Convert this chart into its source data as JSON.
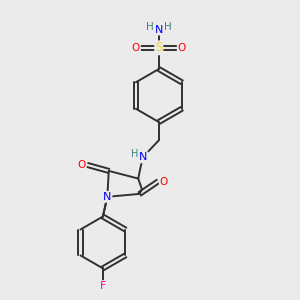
{
  "bg_color": "#ebebeb",
  "atom_colors": {
    "C": "#303030",
    "N": "#0000FF",
    "O": "#FF0000",
    "S": "#FFD700",
    "F": "#FF00AA",
    "H": "#408080"
  },
  "bond_color": "#303030",
  "bond_lw": 1.4
}
